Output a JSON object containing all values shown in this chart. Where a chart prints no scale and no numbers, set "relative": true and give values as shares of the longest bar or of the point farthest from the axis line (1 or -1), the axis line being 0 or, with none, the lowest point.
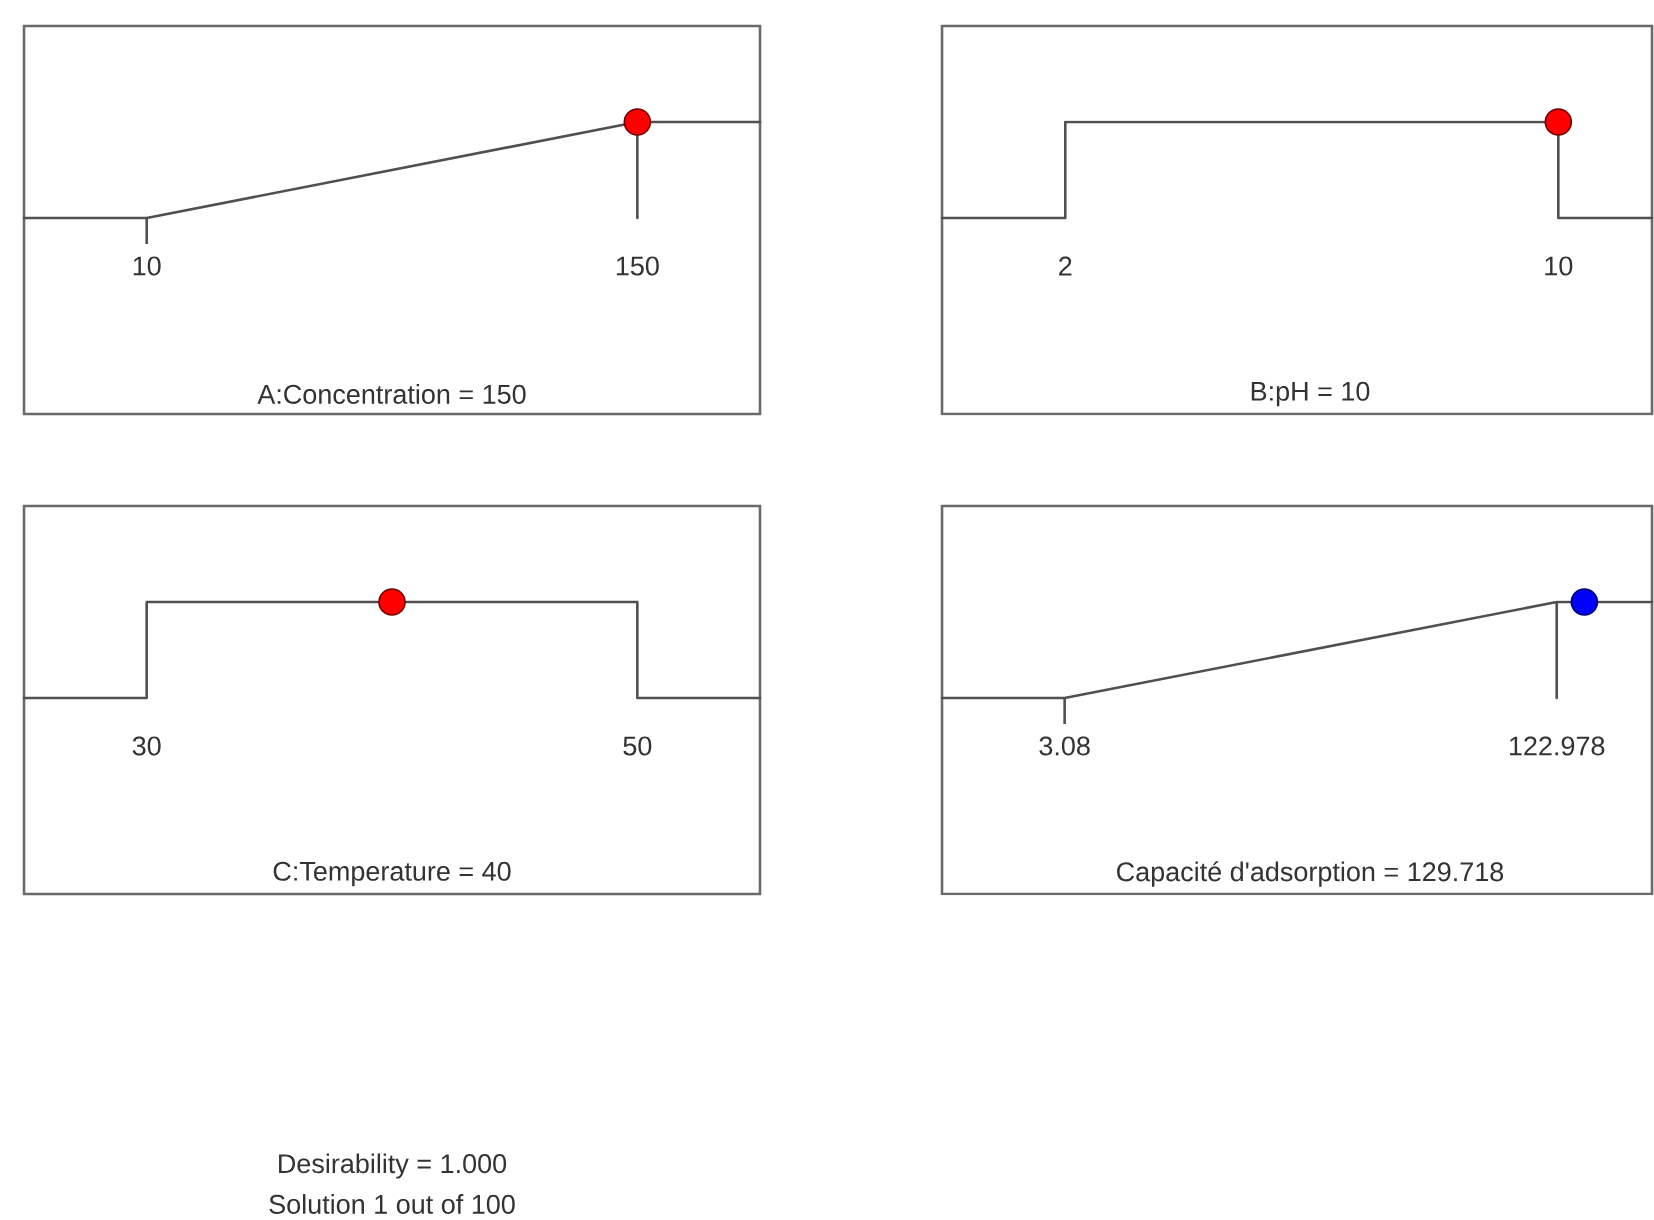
{
  "chart_data": [
    {
      "type": "line",
      "relative": true,
      "xlabel": "A:Concentration = 150",
      "xlim": [
        -25,
        185
      ],
      "xticks": [
        10,
        150
      ],
      "series": [
        {
          "type": "line",
          "x": [
            -25,
            10,
            150,
            150,
            150,
            185
          ],
          "values": [
            0,
            0,
            1,
            0,
            1,
            1
          ],
          "color": "#505050"
        },
        {
          "type": "scatter",
          "x": [
            150
          ],
          "values": [
            1
          ],
          "color": "#ff0000",
          "marker": "circle"
        }
      ]
    },
    {
      "type": "line",
      "relative": true,
      "xlabel": "B:pH = 10",
      "xlim": [
        0,
        11.52
      ],
      "xticks": [
        2,
        10
      ],
      "series": [
        {
          "type": "line",
          "x": [
            0,
            2,
            2,
            10,
            10,
            11.52
          ],
          "values": [
            0,
            0,
            1,
            1,
            0,
            0
          ],
          "color": "#505050"
        },
        {
          "type": "scatter",
          "x": [
            10
          ],
          "values": [
            1
          ],
          "color": "#ff0000",
          "marker": "circle"
        }
      ]
    },
    {
      "type": "line",
      "relative": true,
      "xlabel": "C:Temperature = 40",
      "xlim": [
        25,
        55
      ],
      "xticks": [
        30,
        50
      ],
      "series": [
        {
          "type": "line",
          "x": [
            25,
            30,
            30,
            50,
            50,
            55
          ],
          "values": [
            0,
            0,
            1,
            1,
            0,
            0
          ],
          "color": "#505050"
        },
        {
          "type": "scatter",
          "x": [
            40
          ],
          "values": [
            1
          ],
          "color": "#ff0000",
          "marker": "circle"
        }
      ],
      "annotations": [
        "Desirability = 1.000",
        "Solution 1 out of 100"
      ]
    },
    {
      "type": "line",
      "relative": true,
      "xlabel": "Capacité d'adsorption = 129.718",
      "xlim": [
        -26.8,
        146.2
      ],
      "xticks": [
        3.08,
        122.978
      ],
      "series": [
        {
          "type": "line",
          "x": [
            -26.8,
            3.08,
            122.978,
            122.978,
            122.978,
            146.2
          ],
          "values": [
            0,
            0,
            1,
            0,
            1,
            1
          ],
          "color": "#505050"
        },
        {
          "type": "scatter",
          "x": [
            129.718
          ],
          "values": [
            1
          ],
          "color": "#0000ff",
          "marker": "circle"
        }
      ]
    }
  ]
}
